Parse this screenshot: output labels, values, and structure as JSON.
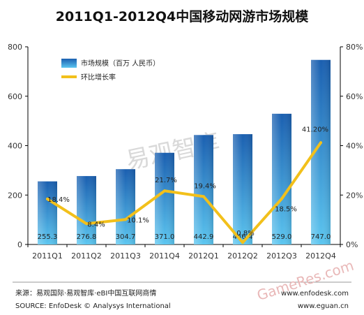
{
  "chart_data": {
    "type": "bar",
    "title": "2011Q1-2012Q4中国移动网游市场规模",
    "categories": [
      "2011Q1",
      "2011Q2",
      "2011Q3",
      "2011Q4",
      "2012Q1",
      "2012Q2",
      "2012Q3",
      "2012Q4"
    ],
    "series": [
      {
        "name": "市场规模（百万 人民币）",
        "type": "bar",
        "axis": "left",
        "values": [
          255.3,
          276.8,
          304.7,
          371.0,
          442.9,
          446.4,
          529.0,
          747.0
        ],
        "labels": [
          "255.3",
          "276.8",
          "304.7",
          "371.0",
          "442.9",
          "446.4",
          "529.0",
          "747.0"
        ]
      },
      {
        "name": "环比增长率",
        "type": "line",
        "axis": "right",
        "values": [
          18.4,
          8.4,
          10.1,
          21.7,
          19.4,
          0.8,
          18.5,
          41.2
        ],
        "labels": [
          "18.4%",
          "8.4%",
          "10.1%",
          "21.7%",
          "19.4%",
          "0.8%",
          "18.5%",
          "41.20%"
        ]
      }
    ],
    "ylim_left": [
      0,
      800
    ],
    "yticks_left": [
      "0",
      "200",
      "400",
      "600",
      "800"
    ],
    "ylim_right": [
      0,
      80
    ],
    "yticks_right": [
      "0%",
      "20%",
      "40%",
      "60%",
      "80%"
    ],
    "legend_position": "top-left",
    "grid": false
  },
  "colors": {
    "bar_top": "#1a5fb0",
    "bar_bottom": "#5cc6f0",
    "line": "#f2c01b"
  },
  "watermark": "易观智库",
  "watermark2": "GameRes.com",
  "footer": {
    "source_cn": "来源：易观国际·易观智库·eBI中国互联网商情",
    "source_en": "SOURCE:  EnfoDesk © Analysys International",
    "url1": "www.enfodesk.com",
    "url2": "www.eguan.cn"
  }
}
